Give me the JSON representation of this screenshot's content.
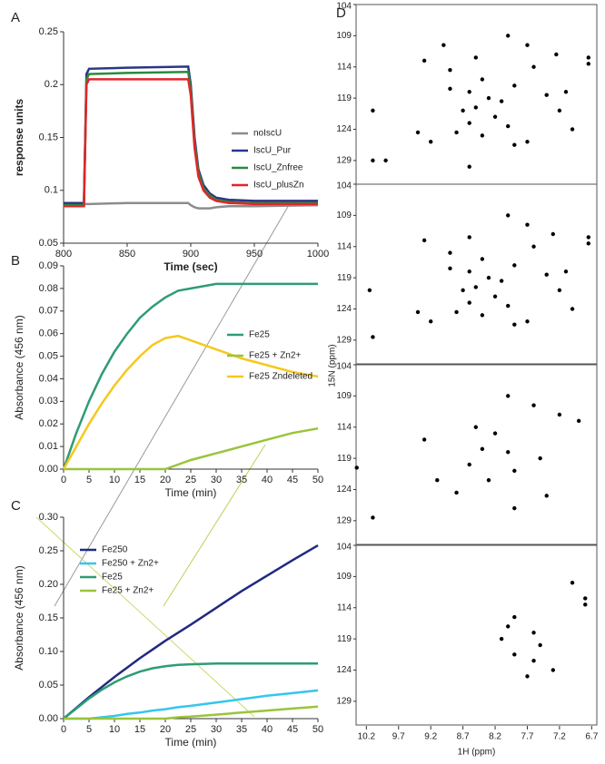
{
  "chart_data": [
    {
      "type": "line",
      "label": "A",
      "ylabel": "response units",
      "xlabel": "Time (sec)",
      "legend": "center right",
      "x": [
        800,
        816,
        818,
        820,
        850,
        898,
        900,
        903,
        906,
        910,
        915,
        920,
        930,
        950,
        1000
      ],
      "series": [
        {
          "name": "noIscU",
          "color": "#8c8c8c",
          "values": [
            0.087,
            0.087,
            0.087,
            0.087,
            0.088,
            0.088,
            0.086,
            0.084,
            0.083,
            0.083,
            0.083,
            0.084,
            0.085,
            0.085,
            0.086
          ]
        },
        {
          "name": "IscU_Pur",
          "color": "#2b3585",
          "values": [
            0.088,
            0.088,
            0.21,
            0.215,
            0.216,
            0.217,
            0.2,
            0.15,
            0.12,
            0.105,
            0.097,
            0.093,
            0.091,
            0.09,
            0.09
          ]
        },
        {
          "name": "IscU_Znfree",
          "color": "#2a8a3c",
          "values": [
            0.086,
            0.086,
            0.205,
            0.21,
            0.211,
            0.212,
            0.195,
            0.145,
            0.117,
            0.102,
            0.095,
            0.091,
            0.089,
            0.088,
            0.088
          ]
        },
        {
          "name": "IscU_plusZn",
          "color": "#e0262a",
          "values": [
            0.085,
            0.085,
            0.2,
            0.205,
            0.205,
            0.205,
            0.19,
            0.14,
            0.113,
            0.1,
            0.093,
            0.09,
            0.088,
            0.087,
            0.087
          ]
        }
      ],
      "xlim": [
        800,
        1000
      ],
      "xticks": [
        800,
        850,
        900,
        950,
        1000
      ],
      "ylim": [
        0.05,
        0.25
      ],
      "yticks": [
        0.05,
        0.1,
        0.15,
        0.2,
        0.25
      ]
    },
    {
      "type": "line",
      "label": "B",
      "ylabel": "Absorbance (456 nm)",
      "xlabel": "Time (min)",
      "legend": "center right",
      "x": [
        0,
        2.5,
        5,
        7.5,
        10,
        12.5,
        15,
        17.5,
        20,
        22.5,
        25,
        30,
        35,
        40,
        45,
        50
      ],
      "series": [
        {
          "name": "Fe25",
          "color": "#2e9c74",
          "values": [
            0,
            0.016,
            0.03,
            0.042,
            0.052,
            0.06,
            0.067,
            0.072,
            0.076,
            0.079,
            0.08,
            0.082,
            0.082,
            0.082,
            0.082,
            0.082
          ]
        },
        {
          "name": "Fe25 + Zn2+",
          "color": "#9ac43a",
          "values": [
            0,
            0,
            0,
            0,
            0,
            0,
            0,
            0,
            0,
            0.002,
            0.004,
            0.007,
            0.01,
            0.013,
            0.016,
            0.018
          ]
        },
        {
          "name": "Fe25 Zndeleted",
          "color": "#f5c81d",
          "values": [
            0,
            0.01,
            0.02,
            0.029,
            0.037,
            0.044,
            0.05,
            0.055,
            0.058,
            0.059,
            0.057,
            0.053,
            0.049,
            0.046,
            0.043,
            0.041
          ]
        }
      ],
      "xlim": [
        0,
        50
      ],
      "xticks": [
        0,
        5,
        10,
        15,
        20,
        25,
        30,
        35,
        40,
        45,
        50
      ],
      "ylim": [
        0,
        0.09
      ],
      "yticks": [
        {
          "value": 0,
          "label": "0.00"
        },
        {
          "value": 0.01,
          "label": "0.01"
        },
        {
          "value": 0.02,
          "label": "0.02"
        },
        {
          "value": 0.03,
          "label": "0.03"
        },
        {
          "value": 0.04,
          "label": "0.04"
        },
        {
          "value": 0.05,
          "label": "0.05"
        },
        {
          "value": 0.06,
          "label": "0.06"
        },
        {
          "value": 0.07,
          "label": "0.07"
        },
        {
          "value": 0.08,
          "label": "0.08"
        },
        {
          "value": 0.09,
          "label": "0.09"
        }
      ]
    },
    {
      "type": "line",
      "label": "C",
      "ylabel": "Absorbance (456 nm)",
      "xlabel": "Time (min)",
      "legend": "upper left",
      "x": [
        0,
        2.5,
        5,
        7.5,
        10,
        12.5,
        15,
        17.5,
        20,
        22.5,
        25,
        30,
        35,
        40,
        45,
        50
      ],
      "series": [
        {
          "name": "Fe250",
          "color": "#1f2a80",
          "values": [
            0,
            0.016,
            0.032,
            0.047,
            0.062,
            0.076,
            0.09,
            0.103,
            0.116,
            0.128,
            0.14,
            0.165,
            0.19,
            0.213,
            0.236,
            0.258
          ]
        },
        {
          "name": "Fe250 + Zn2+",
          "color": "#33c6ef",
          "values": [
            0,
            0,
            0,
            0.002,
            0.004,
            0.007,
            0.009,
            0.012,
            0.014,
            0.017,
            0.019,
            0.024,
            0.029,
            0.034,
            0.038,
            0.042
          ]
        },
        {
          "name": "Fe25",
          "color": "#2e9c74",
          "values": [
            0,
            0.015,
            0.03,
            0.043,
            0.054,
            0.063,
            0.07,
            0.075,
            0.078,
            0.08,
            0.081,
            0.082,
            0.082,
            0.082,
            0.082,
            0.082
          ]
        },
        {
          "name": "Fe25 + Zn2+",
          "color": "#9ac43a",
          "values": [
            0,
            0,
            0,
            0,
            0,
            0,
            0,
            0,
            0,
            0.002,
            0.003,
            0.006,
            0.009,
            0.012,
            0.015,
            0.018
          ]
        }
      ],
      "xlim": [
        0,
        50
      ],
      "xticks": [
        0,
        5,
        10,
        15,
        20,
        25,
        30,
        35,
        40,
        45,
        50
      ],
      "ylim": [
        0,
        0.3
      ],
      "yticks": [
        {
          "value": 0,
          "label": "0.00"
        },
        {
          "value": 0.05,
          "label": "0.05"
        },
        {
          "value": 0.1,
          "label": "0.10"
        },
        {
          "value": 0.15,
          "label": "0.15"
        },
        {
          "value": 0.2,
          "label": "0.20"
        },
        {
          "value": 0.25,
          "label": "0.25"
        },
        {
          "value": 0.3,
          "label": "0.30"
        }
      ]
    },
    {
      "type": "scatter",
      "label": "D",
      "ylabel": "15N (ppm)",
      "xlabel": "1H (ppm)",
      "color": "#000000",
      "xlim": [
        10.36,
        6.62
      ],
      "xticks": [
        10.2,
        9.7,
        9.2,
        8.7,
        8.2,
        7.7,
        7.2,
        6.7
      ],
      "ylim": [
        132.8,
        104
      ],
      "yticks": [
        104,
        109,
        114,
        119,
        124,
        129
      ],
      "panels": [
        {
          "x": [
            9.0,
            8.0,
            7.7,
            6.75,
            6.75,
            7.25,
            7.6,
            8.5,
            9.3,
            8.9,
            8.4,
            8.6,
            8.3,
            8.1,
            8.5,
            8.7,
            8.2,
            8.6,
            8.0,
            8.4,
            8.8,
            9.4,
            10.1,
            7.4,
            7.2,
            7.0,
            7.7,
            7.9,
            10.1,
            9.9,
            8.6,
            9.2,
            7.1,
            8.9,
            7.9
          ],
          "y": [
            110.5,
            109,
            110.5,
            112.5,
            113.5,
            112,
            114,
            112.5,
            113,
            114.5,
            116,
            118,
            119,
            119.5,
            120.5,
            121,
            122,
            123,
            123.5,
            125,
            124.5,
            124.5,
            121,
            118.5,
            121,
            124,
            126,
            126.5,
            129,
            129,
            130,
            126,
            118,
            117.5,
            117
          ]
        },
        {
          "x": [
            8.0,
            7.7,
            6.75,
            6.75,
            7.3,
            7.6,
            8.6,
            9.3,
            8.9,
            8.4,
            8.6,
            8.3,
            8.1,
            8.5,
            8.7,
            8.2,
            8.6,
            8.0,
            8.4,
            8.8,
            9.4,
            10.15,
            7.4,
            7.2,
            7.0,
            7.7,
            7.9,
            10.1,
            9.2,
            7.1,
            8.9,
            7.9
          ],
          "y": [
            109,
            110.5,
            112.5,
            113.5,
            112,
            114,
            112.5,
            113,
            115,
            116,
            118,
            119,
            119.5,
            120.5,
            121,
            122,
            123,
            123.5,
            125,
            124.5,
            124.5,
            121,
            118.5,
            121,
            124,
            126,
            126.5,
            128.5,
            126,
            118,
            117.5,
            117
          ]
        },
        {
          "x": [
            8.0,
            7.6,
            7.2,
            6.9,
            8.5,
            8.2,
            9.3,
            8.4,
            8.0,
            7.5,
            8.6,
            7.9,
            8.3,
            9.1,
            8.8,
            7.4,
            7.9,
            10.1,
            10.35
          ],
          "y": [
            109,
            110.5,
            112,
            113,
            114,
            115,
            116,
            117.5,
            118,
            119,
            120,
            121,
            122.5,
            122.5,
            124.5,
            125,
            127,
            128.5,
            120.5
          ]
        },
        {
          "x": [
            7.0,
            6.8,
            6.8,
            7.9,
            8.0,
            7.6,
            7.5,
            7.9,
            7.7,
            7.3,
            8.1,
            7.6
          ],
          "y": [
            110,
            112.5,
            113.5,
            115.5,
            117,
            118,
            120,
            121.5,
            125,
            124,
            119,
            122.5
          ]
        }
      ]
    }
  ]
}
